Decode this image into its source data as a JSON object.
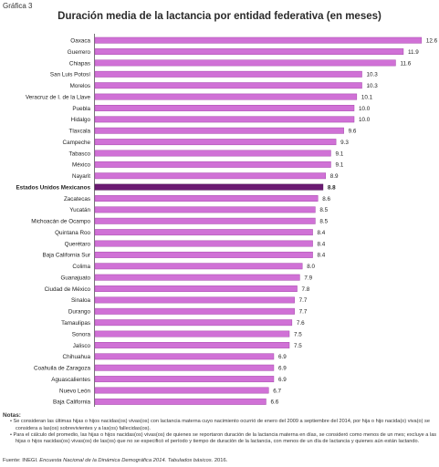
{
  "label": "Gráfica 3",
  "chart_data": {
    "type": "bar",
    "orientation": "horizontal",
    "title": "Duración media de la lactancia por entidad federativa (en meses)",
    "xlabel": "",
    "ylabel": "",
    "xlim": [
      0,
      13
    ],
    "grid": false,
    "bar_color": "#d071d6",
    "highlight_color": "#6b1a72",
    "highlight_category": "Estados Unidos Mexicanos",
    "categories": [
      "Oaxaca",
      "Guerrero",
      "Chiapas",
      "San Luis Potosí",
      "Morelos",
      "Veracruz de I. de la Llave",
      "Puebla",
      "Hidalgo",
      "Tlaxcala",
      "Campeche",
      "Tabasco",
      "México",
      "Nayarit",
      "Estados Unidos Mexicanos",
      "Zacatecas",
      "Yucatán",
      "Michoacán de Ocampo",
      "Quintana Roo",
      "Querétaro",
      "Baja California Sur",
      "Colima",
      "Guanajuato",
      "Ciudad de México",
      "Sinaloa",
      "Durango",
      "Tamaulipas",
      "Sonora",
      "Jalisco",
      "Chihuahua",
      "Coahuila de Zaragoza",
      "Aguascalientes",
      "Nuevo León",
      "Baja California"
    ],
    "values": [
      12.6,
      11.9,
      11.6,
      10.3,
      10.3,
      10.1,
      10.0,
      10.0,
      9.6,
      9.3,
      9.1,
      9.1,
      8.9,
      8.8,
      8.6,
      8.5,
      8.5,
      8.4,
      8.4,
      8.4,
      8.0,
      7.9,
      7.8,
      7.7,
      7.7,
      7.6,
      7.5,
      7.5,
      6.9,
      6.9,
      6.9,
      6.7,
      6.6
    ],
    "value_labels": [
      "12.6",
      "11.9",
      "11.6",
      "10.3",
      "10.3",
      "10.1",
      "10.0",
      "10.0",
      "9.6",
      "9.3",
      "9.1",
      "9.1",
      "8.9",
      "8.8",
      "8.6",
      "8.5",
      "8.5",
      "8.4",
      "8.4",
      "8.4",
      "8.0",
      "7.9",
      "7.8",
      "7.7",
      "7.7",
      "7.6",
      "7.5",
      "7.5",
      "6.9",
      "6.9",
      "6.9",
      "6.7",
      "6.6"
    ]
  },
  "notes": {
    "heading": "Notas:",
    "items": [
      "• Se consideran las últimas hijas o hijos nacidas(os) vivas(os) con lactancia materna cuyo nacimiento ocurrió de enero del 2009 a septiembre del 2014, por hija o hijo nacida(o) viva(o) se considera a las(os) sobrevivientes y a las(os) fallecidas(os).",
      "• Para el cálculo del promedio, las hijas o hijos nacidas(os) vivas(os) de quienes se reportaron duración de la lactancia materna en días, se consideró como menos de un mes; excluye a las hijas o hijos nacidas(os) vivas(os) de las(os) que no se especificó el período y tiempo de duración de la lactancia, con menos de un día de lactancia y quienes aún están lactando."
    ]
  },
  "source": {
    "prefix": "Fuente: INEGI.",
    "italic": "Encuesta Nacional de la Dinámica Demográfica 2014. Tabulados básicos.",
    "suffix": "2016."
  }
}
